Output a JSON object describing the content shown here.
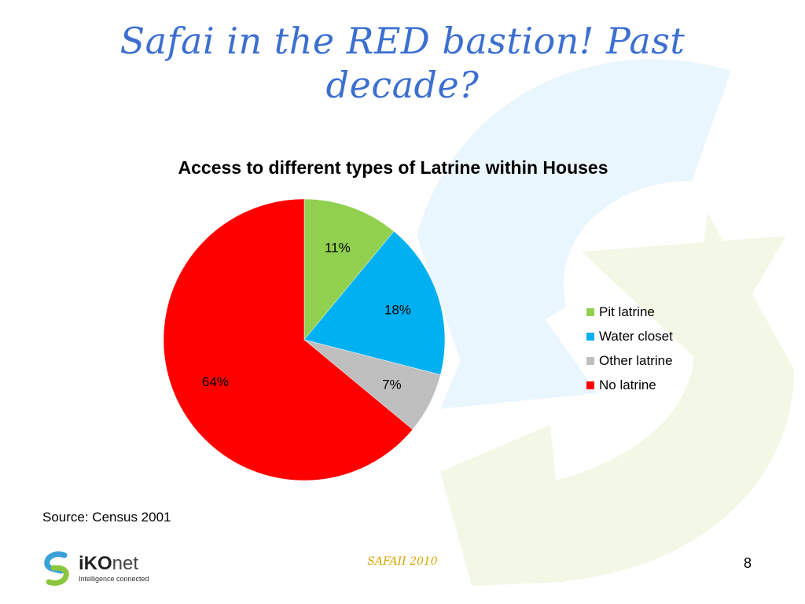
{
  "slide": {
    "title": "Safai in the RED bastion! Past decade?",
    "source_note": "Source: Census 2001",
    "footer_center": "SAFAII 2010",
    "page_number": "8"
  },
  "logo": {
    "brand_main": "iKO",
    "brand_suffix": "net",
    "tagline": "Intelligence connected",
    "colors": {
      "blue": "#3aa0d8",
      "green": "#8cc63f"
    }
  },
  "colors": {
    "title": "#3c6fd0",
    "footer": "#d8a400"
  },
  "chart_data": {
    "type": "pie",
    "title": "Access to different  types of Latrine within Houses",
    "legend_position": "right",
    "categories": [
      "Pit latrine",
      "Water closet",
      "Other latrine",
      "No latrine"
    ],
    "values": [
      11,
      18,
      7,
      64
    ],
    "labels": [
      "11%",
      "18%",
      "7%",
      "64%"
    ],
    "colors": [
      "#92d050",
      "#00b0f0",
      "#bfbfbf",
      "#ff0000"
    ]
  }
}
